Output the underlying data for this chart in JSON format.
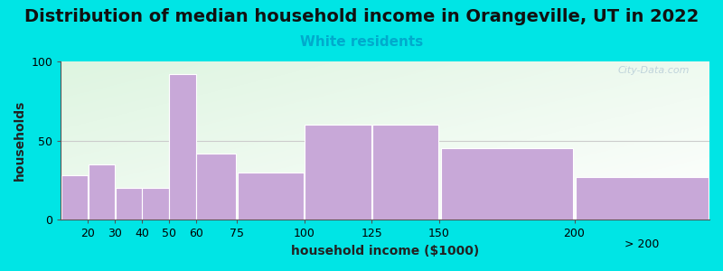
{
  "title": "Distribution of median household income in Orangeville, UT in 2022",
  "subtitle": "White residents",
  "xlabel": "household income ($1000)",
  "ylabel": "households",
  "bin_edges": [
    10,
    20,
    30,
    40,
    50,
    60,
    75,
    100,
    125,
    150,
    200,
    250
  ],
  "tick_labels": [
    "20",
    "30",
    "40",
    "50",
    "60",
    "75",
    "100",
    "125",
    "150",
    "200",
    "> 200"
  ],
  "values": [
    28,
    35,
    20,
    20,
    92,
    42,
    30,
    60,
    60,
    45,
    27
  ],
  "bar_color": "#c8a8d8",
  "ylim": [
    0,
    100
  ],
  "yticks": [
    0,
    50,
    100
  ],
  "background_color": "#00e5e5",
  "gradient_colors": [
    "#ddf0d8",
    "#f5fdf0",
    "#ffffff"
  ],
  "title_fontsize": 14,
  "subtitle_fontsize": 11,
  "subtitle_color": "#00aacc",
  "axis_label_fontsize": 10,
  "watermark_text": "City-Data.com",
  "watermark_color": "#b8cdd8",
  "tick_fontsize": 9
}
